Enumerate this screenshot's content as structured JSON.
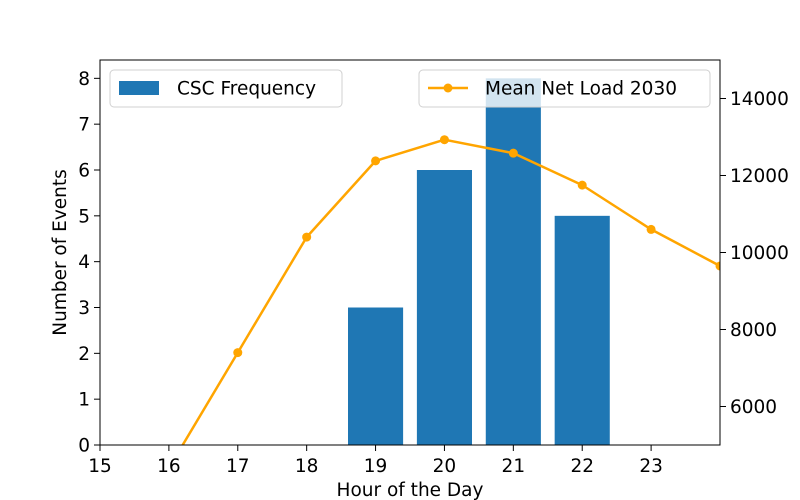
{
  "chart_data": {
    "type": "bar",
    "title": "",
    "xlabel": "Hour of the Day",
    "ylabel": "Number of Events",
    "y2label": "",
    "xlim": [
      15,
      24
    ],
    "xticks": [
      15,
      16,
      17,
      18,
      19,
      20,
      21,
      22,
      23
    ],
    "ylim": [
      0,
      8.4
    ],
    "yticks": [
      0,
      1,
      2,
      3,
      4,
      5,
      6,
      7,
      8
    ],
    "y2lim": [
      5000,
      15000
    ],
    "y2ticks": [
      6000,
      8000,
      10000,
      12000,
      14000
    ],
    "grid": false,
    "bar_series": {
      "name": "CSC Frequency",
      "color": "#1f77b4",
      "bar_width": 0.8,
      "x": [
        19,
        20,
        21,
        22
      ],
      "values": [
        3,
        6,
        8,
        5
      ]
    },
    "line_series": {
      "name": "Mean Net Load 2030",
      "color": "#ffa500",
      "axis": "right",
      "x": [
        16,
        17,
        18,
        19,
        20,
        21,
        22,
        23,
        24
      ],
      "values": [
        4400,
        7400,
        10400,
        12380,
        12930,
        12580,
        11750,
        10600,
        9650
      ]
    },
    "legends": [
      {
        "entry": "CSC Frequency",
        "placement": "upper-left"
      },
      {
        "entry": "Mean Net Load 2030",
        "placement": "upper-right"
      }
    ]
  }
}
